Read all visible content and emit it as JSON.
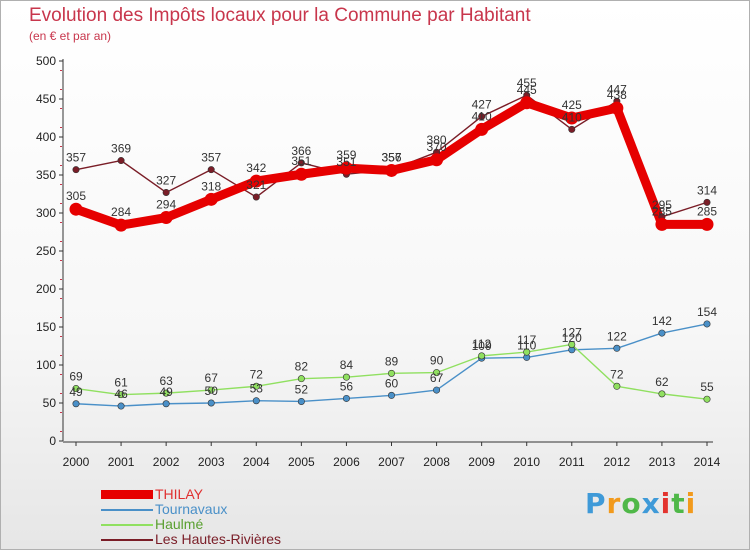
{
  "page": {
    "title": "Evolution des Impôts locaux pour la Commune par Habitant",
    "subtitle": "(en € et par an)"
  },
  "logo": {
    "text": "Proxiti",
    "colors": [
      "#3f9ad8",
      "#f29a1c",
      "#4fb848",
      "#3f9ad8",
      "#e3342f",
      "#4fb848",
      "#f29a1c"
    ]
  },
  "chart_data": {
    "type": "line",
    "title": "Evolution des Impôts locaux pour la Commune par Habitant",
    "subtitle": "(en € et par an)",
    "xlabel": "",
    "ylabel": "",
    "ylim": [
      0,
      500
    ],
    "yticks": [
      0,
      50,
      100,
      150,
      200,
      250,
      300,
      350,
      400,
      450,
      500
    ],
    "grid": false,
    "legend_position": "bottom-left",
    "x": [
      "2000",
      "2001",
      "2002",
      "2003",
      "2004",
      "2005",
      "2006",
      "2007",
      "2008",
      "2009",
      "2010",
      "2011",
      "2012",
      "2013",
      "2014"
    ],
    "series": [
      {
        "name": "Les Hautes-Rivières",
        "color": "#7a1d27",
        "values": [
          357,
          369,
          327,
          357,
          321,
          366,
          351,
          357,
          380,
          427,
          455,
          410,
          447,
          295,
          314
        ]
      },
      {
        "name": "Tournavaux",
        "color": "#4a90c8",
        "values": [
          49,
          46,
          49,
          50,
          53,
          52,
          56,
          60,
          67,
          109,
          110,
          120,
          122,
          142,
          154
        ]
      },
      {
        "name": "Haulmé",
        "color": "#90e060",
        "values": [
          69,
          61,
          63,
          67,
          72,
          82,
          84,
          89,
          90,
          112,
          117,
          127,
          72,
          62,
          55
        ]
      },
      {
        "name": "THILAY",
        "color": "#e60000",
        "values": [
          305,
          284,
          294,
          318,
          342,
          351,
          359,
          356,
          370,
          410,
          445,
          425,
          438,
          285,
          285
        ]
      }
    ],
    "data_labels": [
      {
        "series": 0,
        "values": [
          "357",
          "369",
          "327",
          "357",
          "321",
          "366",
          "351",
          "357",
          "380",
          "427",
          "455",
          "410",
          "447",
          "295",
          "314"
        ]
      },
      {
        "series": 1,
        "values": [
          "49",
          "46",
          "49",
          "50",
          "53",
          "52",
          "56",
          "60",
          "67",
          "109",
          "110",
          "120",
          "122",
          "142",
          "154"
        ]
      },
      {
        "series": 2,
        "values": [
          "69",
          "61",
          "63",
          "67",
          "72",
          "82",
          "84",
          "89",
          "90",
          "112",
          "117",
          "127",
          "72",
          "62",
          "55"
        ]
      },
      {
        "series": 3,
        "values": [
          "305",
          "284",
          "294",
          "318",
          "342",
          "351",
          "359",
          "356",
          "370",
          "410",
          "445",
          "425",
          "438",
          "285",
          "285"
        ]
      }
    ],
    "legend_order": [
      3,
      1,
      2,
      0
    ]
  }
}
